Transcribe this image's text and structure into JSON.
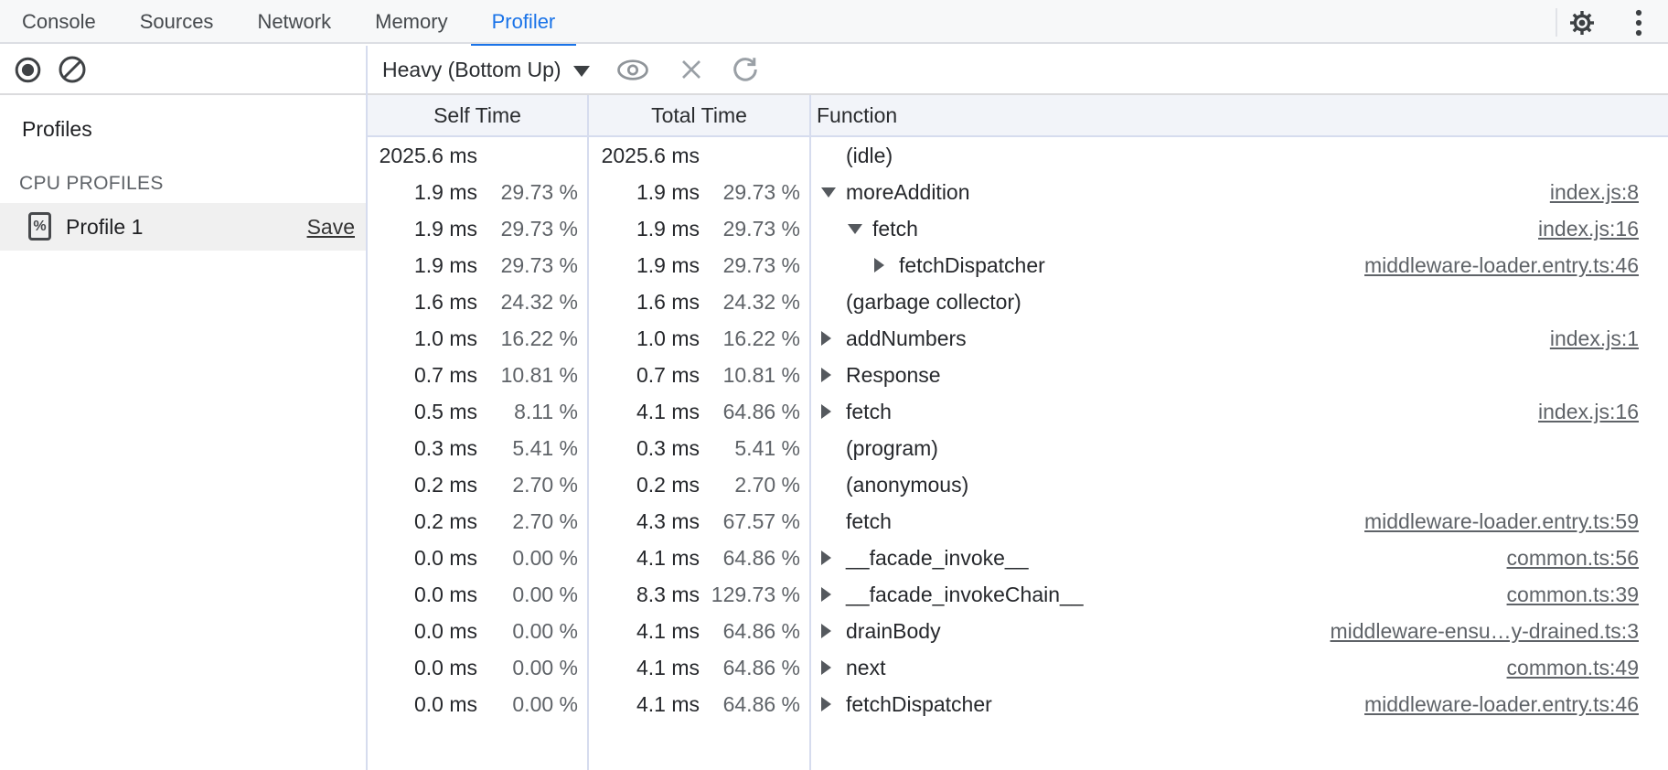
{
  "tabs": {
    "items": [
      {
        "label": "Console",
        "active": false
      },
      {
        "label": "Sources",
        "active": false
      },
      {
        "label": "Network",
        "active": false
      },
      {
        "label": "Memory",
        "active": false
      },
      {
        "label": "Profiler",
        "active": true
      }
    ]
  },
  "toolbar": {
    "dropdown_label": "Heavy (Bottom Up)"
  },
  "sidebar": {
    "profiles_heading": "Profiles",
    "section_heading": "CPU PROFILES",
    "profile": {
      "name": "Profile 1",
      "save_label": "Save",
      "selected": true
    }
  },
  "table": {
    "headers": {
      "self": "Self Time",
      "total": "Total Time",
      "function": "Function"
    },
    "rows": [
      {
        "self_ms": "2025.6 ms",
        "self_pct": "",
        "total_ms": "2025.6 ms",
        "total_pct": "",
        "fn": "(idle)",
        "depth": 0,
        "arrow": "none",
        "link": ""
      },
      {
        "self_ms": "1.9 ms",
        "self_pct": "29.73 %",
        "total_ms": "1.9 ms",
        "total_pct": "29.73 %",
        "fn": "moreAddition",
        "depth": 0,
        "arrow": "down",
        "link": "index.js:8"
      },
      {
        "self_ms": "1.9 ms",
        "self_pct": "29.73 %",
        "total_ms": "1.9 ms",
        "total_pct": "29.73 %",
        "fn": "fetch",
        "depth": 1,
        "arrow": "down",
        "link": "index.js:16"
      },
      {
        "self_ms": "1.9 ms",
        "self_pct": "29.73 %",
        "total_ms": "1.9 ms",
        "total_pct": "29.73 %",
        "fn": "fetchDispatcher",
        "depth": 2,
        "arrow": "right",
        "link": "middleware-loader.entry.ts:46"
      },
      {
        "self_ms": "1.6 ms",
        "self_pct": "24.32 %",
        "total_ms": "1.6 ms",
        "total_pct": "24.32 %",
        "fn": "(garbage collector)",
        "depth": 0,
        "arrow": "none",
        "link": ""
      },
      {
        "self_ms": "1.0 ms",
        "self_pct": "16.22 %",
        "total_ms": "1.0 ms",
        "total_pct": "16.22 %",
        "fn": "addNumbers",
        "depth": 0,
        "arrow": "right",
        "link": "index.js:1"
      },
      {
        "self_ms": "0.7 ms",
        "self_pct": "10.81 %",
        "total_ms": "0.7 ms",
        "total_pct": "10.81 %",
        "fn": "Response",
        "depth": 0,
        "arrow": "right",
        "link": ""
      },
      {
        "self_ms": "0.5 ms",
        "self_pct": "8.11 %",
        "total_ms": "4.1 ms",
        "total_pct": "64.86 %",
        "fn": "fetch",
        "depth": 0,
        "arrow": "right",
        "link": "index.js:16"
      },
      {
        "self_ms": "0.3 ms",
        "self_pct": "5.41 %",
        "total_ms": "0.3 ms",
        "total_pct": "5.41 %",
        "fn": "(program)",
        "depth": 0,
        "arrow": "none",
        "link": ""
      },
      {
        "self_ms": "0.2 ms",
        "self_pct": "2.70 %",
        "total_ms": "0.2 ms",
        "total_pct": "2.70 %",
        "fn": "(anonymous)",
        "depth": 0,
        "arrow": "none",
        "link": ""
      },
      {
        "self_ms": "0.2 ms",
        "self_pct": "2.70 %",
        "total_ms": "4.3 ms",
        "total_pct": "67.57 %",
        "fn": "fetch",
        "depth": 0,
        "arrow": "none",
        "link": "middleware-loader.entry.ts:59"
      },
      {
        "self_ms": "0.0 ms",
        "self_pct": "0.00 %",
        "total_ms": "4.1 ms",
        "total_pct": "64.86 %",
        "fn": "__facade_invoke__",
        "depth": 0,
        "arrow": "right",
        "link": "common.ts:56"
      },
      {
        "self_ms": "0.0 ms",
        "self_pct": "0.00 %",
        "total_ms": "8.3 ms",
        "total_pct": "129.73 %",
        "fn": "__facade_invokeChain__",
        "depth": 0,
        "arrow": "right",
        "link": "common.ts:39"
      },
      {
        "self_ms": "0.0 ms",
        "self_pct": "0.00 %",
        "total_ms": "4.1 ms",
        "total_pct": "64.86 %",
        "fn": "drainBody",
        "depth": 0,
        "arrow": "right",
        "link": "middleware-ensu…y-drained.ts:3"
      },
      {
        "self_ms": "0.0 ms",
        "self_pct": "0.00 %",
        "total_ms": "4.1 ms",
        "total_pct": "64.86 %",
        "fn": "next",
        "depth": 0,
        "arrow": "right",
        "link": "common.ts:49"
      },
      {
        "self_ms": "0.0 ms",
        "self_pct": "0.00 %",
        "total_ms": "4.1 ms",
        "total_pct": "64.86 %",
        "fn": "fetchDispatcher",
        "depth": 0,
        "arrow": "right",
        "link": "middleware-loader.entry.ts:46"
      }
    ]
  },
  "icons": {
    "record": "filled-circle-in-ring",
    "clear": "circle-with-slash",
    "dropdown_caret": "▼",
    "eye": "eye-outline",
    "close": "×",
    "refresh": "circular-arrow",
    "settings": "gear",
    "overflow_menu": "⋮",
    "profile_file": "document-with-percent",
    "expanded": "▼",
    "collapsed": "▶"
  },
  "colors": {
    "accent": "#1a73e8",
    "grid_divider": "#d6dcee",
    "header_bg": "#f2f4f9",
    "selected_row_bg": "#f0f0f0",
    "link_gray": "#5f6368"
  }
}
